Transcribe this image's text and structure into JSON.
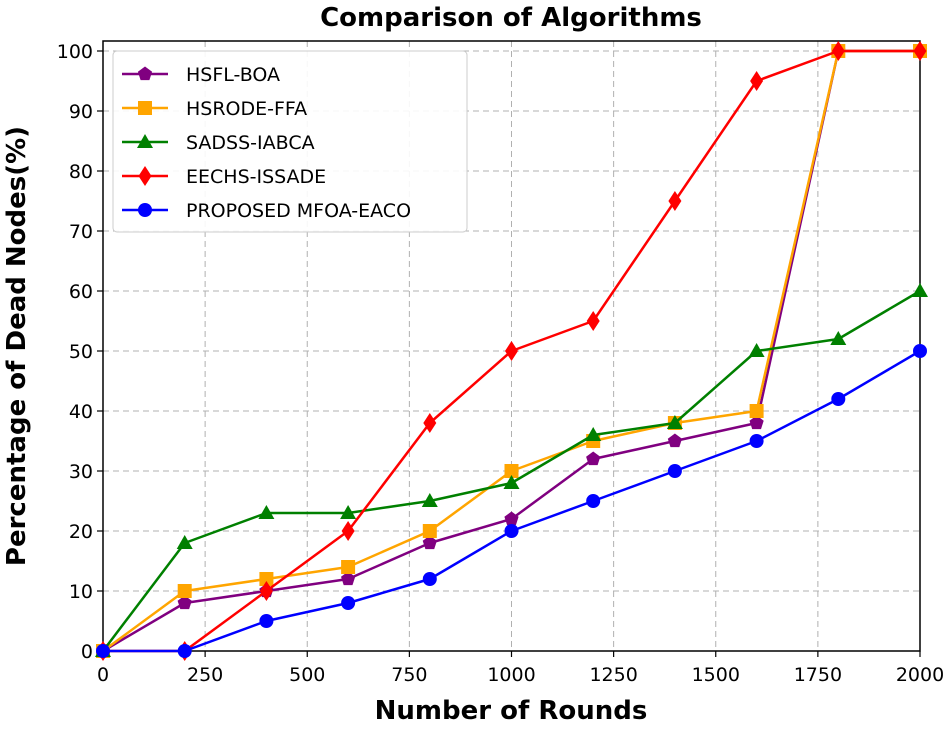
{
  "chart_data": {
    "type": "line",
    "title": "Comparison of Algorithms",
    "xlabel": "Number of Rounds",
    "ylabel": "Percentage of Dead Nodes(%)",
    "xlim": [
      0,
      2000
    ],
    "ylim": [
      0,
      100
    ],
    "xticks": [
      0,
      250,
      500,
      750,
      1000,
      1250,
      1500,
      1750,
      2000
    ],
    "yticks": [
      0,
      10,
      20,
      30,
      40,
      50,
      60,
      70,
      80,
      90,
      100
    ],
    "grid": true,
    "legend_position": "top-left",
    "x": [
      0,
      200,
      400,
      600,
      800,
      1000,
      1200,
      1400,
      1600,
      1800,
      2000
    ],
    "series": [
      {
        "name": "HSFL-BOA",
        "color": "#800080",
        "marker": "pentagon",
        "values": [
          0,
          8,
          10,
          12,
          18,
          22,
          32,
          35,
          38,
          100,
          100
        ]
      },
      {
        "name": "HSRODE-FFA",
        "color": "#ffa500",
        "marker": "square",
        "values": [
          0,
          10,
          12,
          14,
          20,
          30,
          35,
          38,
          40,
          100,
          100
        ]
      },
      {
        "name": "SADSS-IABCA",
        "color": "#008000",
        "marker": "triangle",
        "values": [
          0,
          18,
          23,
          23,
          25,
          28,
          36,
          38,
          50,
          52,
          60
        ]
      },
      {
        "name": "EECHS-ISSADE",
        "color": "#ff0000",
        "marker": "diamond",
        "values": [
          0,
          0,
          10,
          20,
          38,
          50,
          55,
          75,
          95,
          100,
          100
        ]
      },
      {
        "name": "PROPOSED MFOA-EACO",
        "color": "#0000ff",
        "marker": "circle",
        "values": [
          0,
          0,
          5,
          8,
          12,
          20,
          25,
          30,
          35,
          42,
          50
        ]
      }
    ]
  }
}
